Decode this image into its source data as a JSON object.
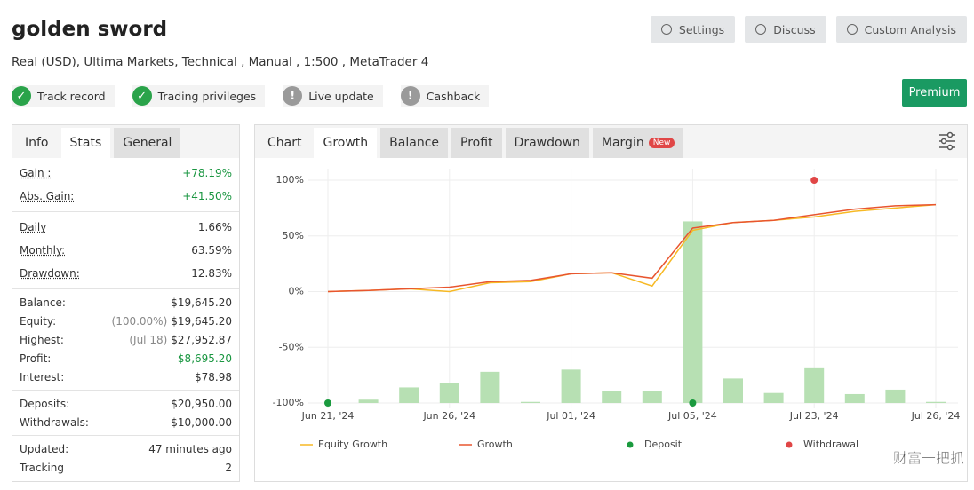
{
  "header": {
    "title": "golden sword",
    "account": "Real (USD),",
    "broker": "Ultima Markets",
    "details": ", Technical , Manual , 1:500 , MetaTrader 4"
  },
  "buttons": [
    "Settings",
    "Discuss",
    "Custom Analysis"
  ],
  "premium": "Premium",
  "badges": [
    {
      "label": "Track record",
      "status": "ok"
    },
    {
      "label": "Trading privileges",
      "status": "ok"
    },
    {
      "label": "Live update",
      "status": "warn"
    },
    {
      "label": "Cashback",
      "status": "warn"
    }
  ],
  "stats_panel": {
    "tabs": [
      "Info",
      "Stats",
      "General"
    ],
    "active_tab": 1,
    "groups": [
      [
        {
          "label": "Gain :",
          "value": "+78.19%",
          "color": "#1a9641"
        },
        {
          "label": "Abs. Gain:",
          "value": "+41.50%",
          "color": "#1a9641"
        }
      ],
      [
        {
          "label": "Daily",
          "value": "1.66%"
        },
        {
          "label": "Monthly:",
          "value": "63.59%"
        },
        {
          "label": "Drawdown:",
          "value": "12.83%"
        }
      ],
      [
        {
          "label": "Balance:",
          "value": "$19,645.20"
        },
        {
          "label": "Equity:",
          "note": "(100.00%)",
          "value": "$19,645.20"
        },
        {
          "label": "Highest:",
          "note": "(Jul 18)",
          "value": "$27,952.87"
        },
        {
          "label": "Profit:",
          "value": "$8,695.20",
          "color": "#1a9641"
        },
        {
          "label": "Interest:",
          "value": "$78.98"
        }
      ],
      [
        {
          "label": "Deposits:",
          "value": "$20,950.00"
        },
        {
          "label": "Withdrawals:",
          "value": "$10,000.00"
        }
      ],
      [
        {
          "label": "Updated:",
          "value": "47 minutes ago"
        },
        {
          "label": "Tracking",
          "value": "2"
        }
      ]
    ]
  },
  "chart_panel": {
    "label": "Chart",
    "tabs": [
      "Growth",
      "Balance",
      "Profit",
      "Drawdown",
      "Margin"
    ],
    "active_tab": 0,
    "new_badge": "New"
  },
  "chart_data": {
    "type": "line",
    "categories": [
      "Jun 21, '24",
      null,
      null,
      "Jun 26, '24",
      null,
      null,
      "Jul 01, '24",
      null,
      null,
      "Jul 05, '24",
      null,
      null,
      "Jul 23, '24",
      null,
      null,
      "Jul 26, '24"
    ],
    "ylim": [
      -100,
      100
    ],
    "yticks": [
      {
        "value": 100,
        "label": "100%"
      },
      {
        "value": 50,
        "label": "50%"
      },
      {
        "value": 0,
        "label": "0%"
      },
      {
        "value": -50,
        "label": "-50%"
      },
      {
        "value": -100,
        "label": "-100%"
      }
    ],
    "grid": true,
    "series": [
      {
        "name": "Equity Growth",
        "type": "line",
        "color": "#f7b924",
        "values": [
          0,
          1,
          2.5,
          0,
          8,
          9,
          16,
          17,
          5,
          55,
          62,
          64,
          67,
          72,
          75,
          78
        ]
      },
      {
        "name": "Growth",
        "type": "line",
        "color": "#e8552f",
        "values": [
          0,
          1,
          2.5,
          4,
          9,
          10,
          16,
          17,
          12,
          57,
          62,
          64,
          69,
          74,
          77,
          78
        ]
      },
      {
        "name": "Deposit",
        "type": "scatter",
        "color": "#1a9a3e",
        "values": [
          -100,
          null,
          null,
          null,
          null,
          null,
          null,
          null,
          null,
          -100,
          null,
          null,
          null,
          null,
          null,
          null
        ]
      },
      {
        "name": "Withdrawal",
        "type": "scatter",
        "color": "#e04646",
        "values": [
          null,
          null,
          null,
          null,
          null,
          null,
          null,
          null,
          null,
          null,
          null,
          null,
          100,
          null,
          null,
          null
        ]
      },
      {
        "type": "bar",
        "color": "#b7e0b3",
        "values": [
          null,
          -97,
          -86,
          -82,
          -72,
          -99,
          -70,
          -89,
          -89,
          63,
          -78,
          -91,
          -68,
          -92,
          -88,
          -99
        ]
      }
    ]
  },
  "watermark": "财富一把抓"
}
